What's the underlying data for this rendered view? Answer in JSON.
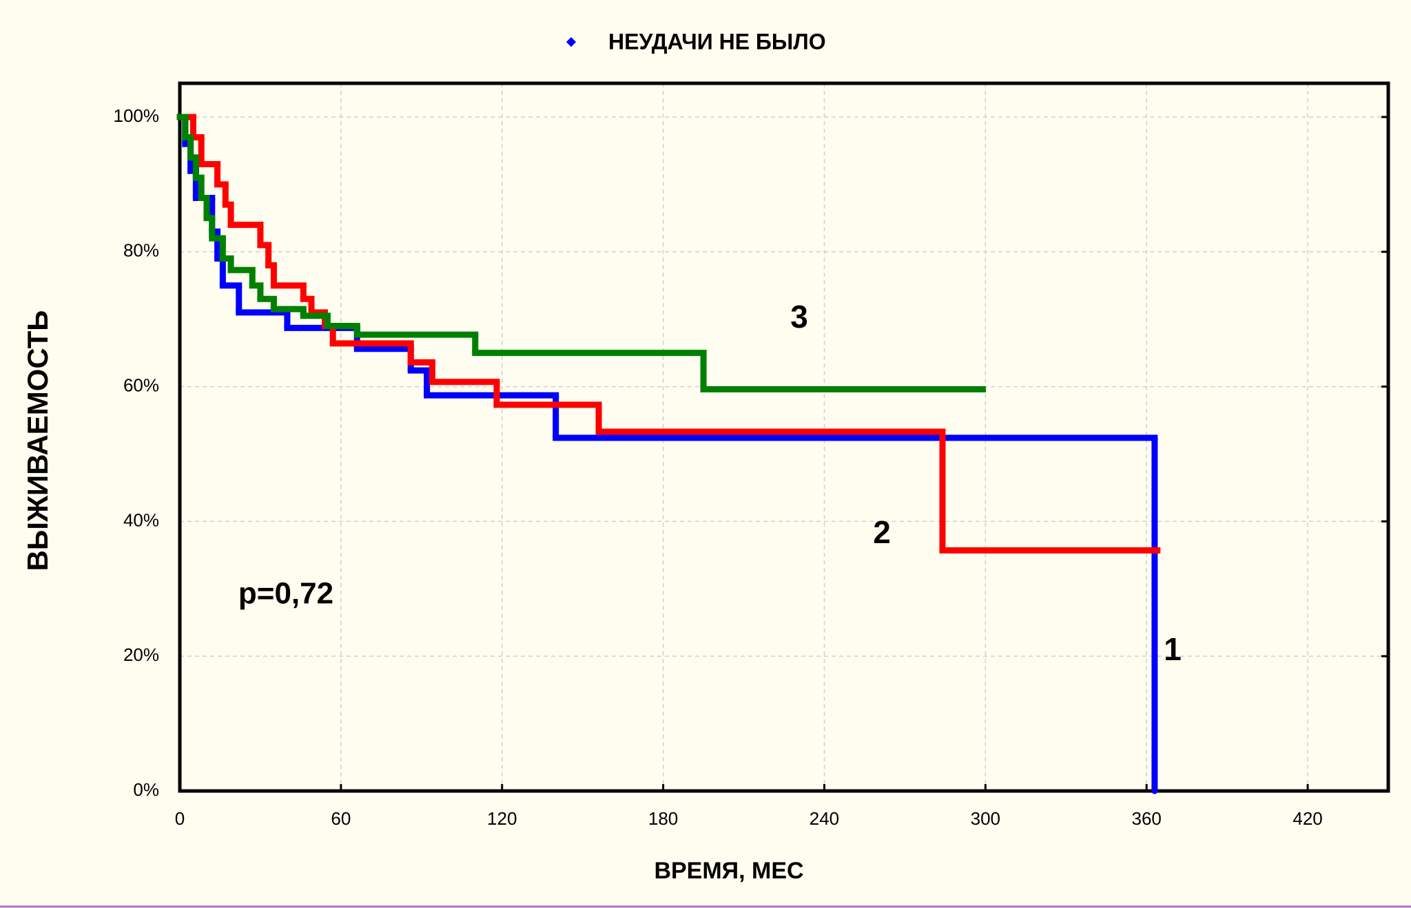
{
  "chart_data": {
    "type": "step",
    "legend": "top",
    "xlabel": "ВРЕМЯ, МЕС",
    "ylabel": "ВЫЖИВАЕМОСТЬ",
    "annotations": [
      "p=0,72"
    ],
    "xlim": [
      0,
      450
    ],
    "xticks": [
      0,
      60,
      120,
      180,
      240,
      300,
      360,
      420
    ],
    "ylim": [
      0,
      105
    ],
    "yticks": [
      {
        "value": 0,
        "label": "0%"
      },
      {
        "value": 20,
        "label": "20%"
      },
      {
        "value": 40,
        "label": "40%"
      },
      {
        "value": 60,
        "label": "60%"
      },
      {
        "value": 80,
        "label": "80%"
      },
      {
        "value": 100,
        "label": "100%"
      }
    ],
    "grid": true,
    "series": [
      {
        "name": "НЕУДАЧИ НЕ БЫЛО",
        "label": "1",
        "color": "#0000ff",
        "x": [
          0,
          2,
          4,
          6,
          12,
          14,
          16,
          22,
          40,
          66,
          86,
          92,
          140,
          363
        ],
        "values": [
          100,
          96,
          92,
          88,
          83,
          79,
          75,
          71,
          68.7,
          65.6,
          62.4,
          58.7,
          52.4,
          0
        ]
      },
      {
        "label": "2",
        "color": "#ff0000",
        "x": [
          0,
          5,
          8,
          14,
          17,
          19,
          30,
          33,
          35,
          46,
          49,
          54,
          57,
          86,
          94,
          118,
          156,
          284,
          364
        ],
        "values": [
          100,
          97,
          93,
          90,
          87,
          84,
          81,
          78,
          75,
          73,
          71,
          69,
          66.4,
          63.6,
          60.7,
          57.3,
          53.3,
          35.7,
          35.7
        ]
      },
      {
        "label": "3",
        "color": "#008000",
        "x": [
          0,
          2,
          4,
          6,
          8,
          10,
          12,
          16,
          19,
          27,
          30,
          35,
          46,
          55,
          66,
          110,
          195,
          299
        ],
        "values": [
          100,
          97,
          94,
          91,
          88,
          85,
          82,
          79,
          77.3,
          75,
          73,
          71.5,
          70.5,
          69,
          67.7,
          65,
          59.6,
          59.6
        ]
      }
    ]
  }
}
